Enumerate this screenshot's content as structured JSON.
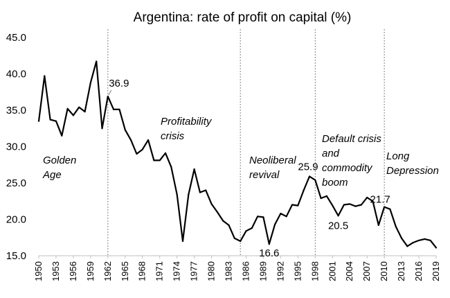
{
  "chart_data": {
    "type": "line",
    "title": "Argentina: rate of profit on capital (%)",
    "xlabel": "",
    "ylabel": "",
    "ylim": [
      15.0,
      45.0
    ],
    "yticks": [
      "15.0",
      "20.0",
      "25.0",
      "30.0",
      "35.0",
      "40.0",
      "45.0"
    ],
    "xticks": [
      "1950",
      "1953",
      "1956",
      "1959",
      "1962",
      "1965",
      "1968",
      "1971",
      "1974",
      "1977",
      "1980",
      "1983",
      "1986",
      "1989",
      "1992",
      "1995",
      "1998",
      "2001",
      "2004",
      "2007",
      "2010",
      "2013",
      "2016",
      "2019"
    ],
    "grid": false,
    "legend": "none",
    "line_color": "#000000",
    "x": [
      1950,
      1951,
      1952,
      1953,
      1954,
      1955,
      1956,
      1957,
      1958,
      1959,
      1960,
      1961,
      1962,
      1963,
      1964,
      1965,
      1966,
      1967,
      1968,
      1969,
      1970,
      1971,
      1972,
      1973,
      1974,
      1975,
      1976,
      1977,
      1978,
      1979,
      1980,
      1981,
      1982,
      1983,
      1984,
      1985,
      1986,
      1987,
      1988,
      1989,
      1990,
      1991,
      1992,
      1993,
      1994,
      1995,
      1996,
      1997,
      1998,
      1999,
      2000,
      2001,
      2002,
      2003,
      2004,
      2005,
      2006,
      2007,
      2008,
      2009,
      2010,
      2011,
      2012,
      2013,
      2014,
      2015,
      2016,
      2017,
      2018,
      2019
    ],
    "values": [
      33.5,
      39.7,
      33.7,
      33.5,
      31.5,
      35.2,
      34.3,
      35.4,
      34.8,
      38.8,
      41.7,
      32.5,
      36.9,
      35.1,
      35.1,
      32.3,
      30.9,
      29.0,
      29.6,
      30.9,
      28.1,
      28.1,
      29.1,
      27.2,
      23.4,
      17.0,
      23.4,
      26.9,
      23.7,
      24.0,
      22.1,
      21.0,
      19.8,
      19.2,
      17.4,
      17.0,
      18.4,
      18.8,
      20.4,
      20.3,
      16.6,
      19.3,
      20.8,
      20.4,
      22.0,
      21.9,
      24.0,
      25.9,
      25.4,
      22.9,
      23.2,
      21.9,
      20.5,
      22.0,
      22.1,
      21.8,
      22.0,
      23.0,
      22.5,
      19.2,
      21.7,
      21.4,
      19.0,
      17.4,
      16.3,
      16.8,
      17.1,
      17.3,
      17.1,
      16.1
    ],
    "data_labels": [
      {
        "x": 1962,
        "text": "36.9"
      },
      {
        "x": 1990,
        "text": "16.6"
      },
      {
        "x": 1997,
        "text": "25.9"
      },
      {
        "x": 2002,
        "text": "20.5"
      },
      {
        "x": 2010,
        "text": "21.7"
      }
    ],
    "periods": [
      {
        "start": 1962,
        "lines": [
          "Profitability",
          "crisis"
        ]
      },
      {
        "start": 1985,
        "lines": [
          "Neoliberal",
          "revival"
        ]
      },
      {
        "start": 1998,
        "lines": [
          "Default crisis",
          "and",
          "commodity",
          "boom"
        ]
      },
      {
        "start": 2010,
        "lines": [
          "Long",
          "Depression"
        ]
      }
    ],
    "golden_age": [
      "Golden",
      "Age"
    ]
  }
}
